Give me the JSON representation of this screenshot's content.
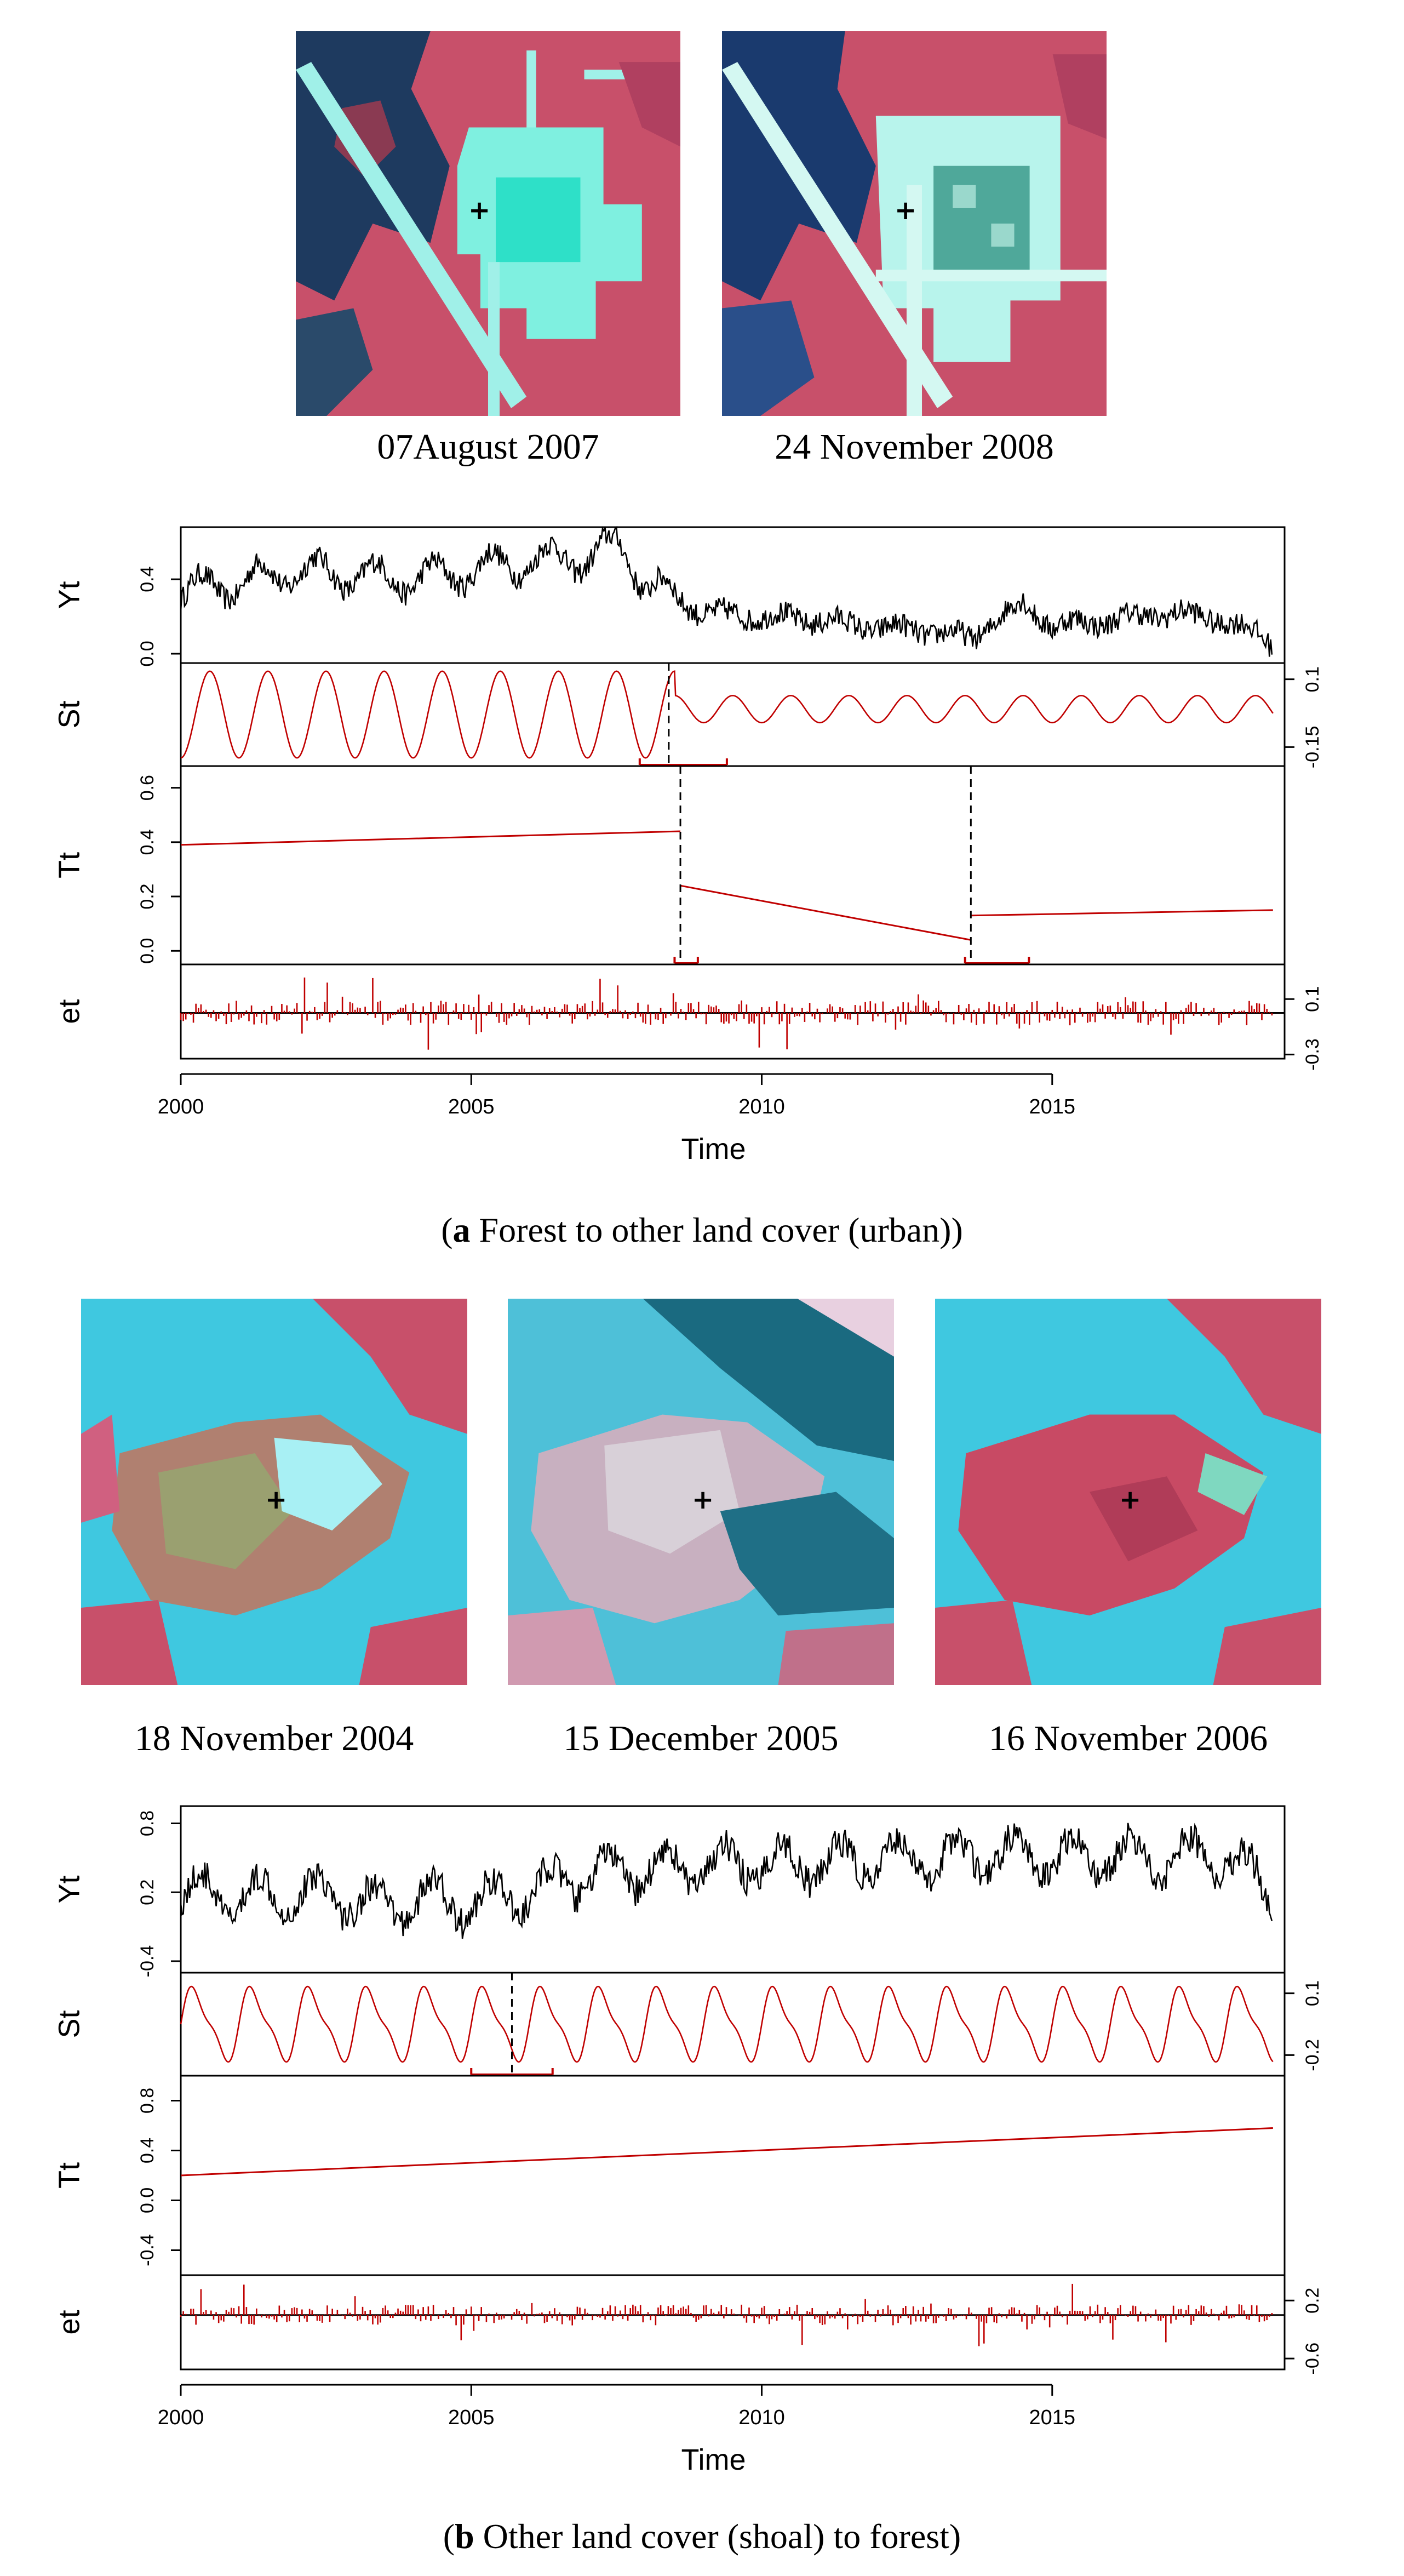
{
  "figure_a": {
    "images": [
      {
        "date": "07August 2007",
        "marker_icon": "cross-marker-icon"
      },
      {
        "date": "24 November 2008",
        "marker_icon": "cross-marker-icon"
      }
    ],
    "caption": {
      "letter": "a",
      "text": " Forest to other land cover (urban)"
    }
  },
  "figure_b": {
    "images": [
      {
        "date": "18 November 2004",
        "marker_icon": "cross-marker-icon"
      },
      {
        "date": "15 December 2005",
        "marker_icon": "cross-marker-icon"
      },
      {
        "date": "16 November 2006",
        "marker_icon": "cross-marker-icon"
      }
    ],
    "caption": {
      "letter": "b",
      "text": " Other land cover (shoal) to forest"
    }
  },
  "colors": {
    "observed": "#000000",
    "component": "#c00000",
    "water": "#1e3a5f",
    "vegetation": "#c8506a",
    "urban": "#7ff0e0",
    "shoal_water": "#3fc8e0"
  },
  "chart_data": [
    {
      "type": "line",
      "xlabel": "Time",
      "xlim": [
        2000,
        2019
      ],
      "xticks": [
        2000,
        2005,
        2010,
        2015
      ],
      "panels": [
        {
          "name": "Yt",
          "ylim": [
            -0.05,
            0.68
          ],
          "yticks": [
            0.0,
            0.4
          ],
          "tick_side": "left",
          "series": {
            "x": [
              2000.0,
              2001.0,
              2002.0,
              2003.0,
              2004.0,
              2005.0,
              2006.0,
              2007.0,
              2007.6,
              2008.0,
              2008.5,
              2009.0,
              2010.0,
              2011.0,
              2012.0,
              2013.0,
              2013.6,
              2014.0,
              2014.5,
              2015.0,
              2016.0,
              2017.0,
              2018.0,
              2018.8
            ],
            "y": [
              0.33,
              0.38,
              0.45,
              0.42,
              0.4,
              0.45,
              0.5,
              0.52,
              0.58,
              0.38,
              0.3,
              0.22,
              0.2,
              0.18,
              0.14,
              0.12,
              0.08,
              0.18,
              0.27,
              0.15,
              0.18,
              0.22,
              0.18,
              0.06
            ],
            "amplitude": 0.14
          }
        },
        {
          "name": "St",
          "ylim": [
            -0.22,
            0.16
          ],
          "yticks": [
            -0.15,
            0.1
          ],
          "tick_side": "right",
          "series": {
            "x": [
              2000.0,
              2008.5,
              2018.8
            ],
            "amplitude": [
              0.16,
              0.05,
              0.05
            ]
          },
          "breakpoints": [
            2008.4
          ],
          "confidence_intervals": [
            [
              2007.9,
              2009.4
            ]
          ]
        },
        {
          "name": "Tt",
          "ylim": [
            -0.05,
            0.68
          ],
          "yticks": [
            0.0,
            0.2,
            0.4,
            0.6
          ],
          "tick_side": "left",
          "series": {
            "segments": [
              {
                "x": [
                  2000.0,
                  2008.6
                ],
                "y": [
                  0.39,
                  0.44
                ]
              },
              {
                "x": [
                  2008.6,
                  2013.6
                ],
                "y": [
                  0.24,
                  0.04
                ]
              },
              {
                "x": [
                  2013.6,
                  2018.8
                ],
                "y": [
                  0.13,
                  0.15
                ]
              }
            ]
          },
          "breakpoints": [
            2008.6,
            2013.6
          ],
          "confidence_intervals": [
            [
              2008.5,
              2008.9
            ],
            [
              2013.5,
              2014.6
            ]
          ]
        },
        {
          "name": "et",
          "ylim": [
            -0.33,
            0.35
          ],
          "yticks": [
            -0.3,
            0.1
          ],
          "tick_side": "right",
          "style": "spikes"
        }
      ]
    },
    {
      "type": "line",
      "xlabel": "Time",
      "xlim": [
        2000,
        2019
      ],
      "xticks": [
        2000,
        2005,
        2010,
        2015
      ],
      "panels": [
        {
          "name": "Yt",
          "ylim": [
            -0.5,
            0.95
          ],
          "yticks": [
            -0.4,
            0.2,
            0.8
          ],
          "tick_side": "left",
          "series": {
            "x": [
              2000.0,
              2001.0,
              2002.0,
              2003.0,
              2003.5,
              2004.0,
              2005.0,
              2006.0,
              2007.0,
              2008.0,
              2009.0,
              2010.0,
              2011.0,
              2012.0,
              2013.0,
              2014.0,
              2015.0,
              2016.0,
              2017.0,
              2018.0,
              2018.8
            ],
            "y": [
              0.2,
              0.15,
              0.2,
              0.15,
              0.05,
              0.15,
              0.1,
              0.2,
              0.35,
              0.4,
              0.42,
              0.45,
              0.45,
              0.48,
              0.5,
              0.52,
              0.5,
              0.52,
              0.5,
              0.52,
              0.2
            ],
            "amplitude": 0.3
          }
        },
        {
          "name": "St",
          "ylim": [
            -0.3,
            0.2
          ],
          "yticks": [
            -0.2,
            0.1
          ],
          "tick_side": "right",
          "series": {
            "x": [
              2000.0,
              2005.6,
              2018.8
            ],
            "amplitude": [
              0.2,
              0.2,
              0.2
            ]
          },
          "breakpoints": [
            2005.7
          ],
          "confidence_intervals": [
            [
              2005.0,
              2006.4
            ]
          ]
        },
        {
          "name": "Tt",
          "ylim": [
            -0.6,
            1.0
          ],
          "yticks": [
            -0.4,
            0.0,
            0.4,
            0.8
          ],
          "tick_side": "left",
          "series": {
            "segments": [
              {
                "x": [
                  2000.0,
                  2018.8
                ],
                "y": [
                  0.2,
                  0.58
                ]
              }
            ]
          }
        },
        {
          "name": "et",
          "ylim": [
            -0.75,
            0.55
          ],
          "yticks": [
            -0.6,
            0.2
          ],
          "tick_side": "right",
          "style": "spikes"
        }
      ]
    }
  ]
}
